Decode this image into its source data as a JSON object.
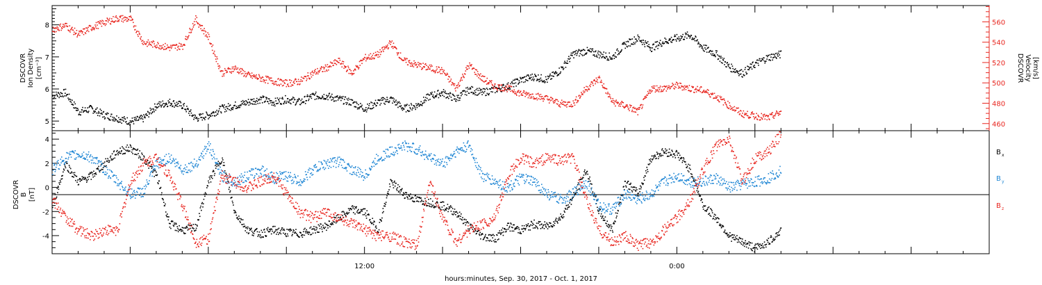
{
  "xlabel": "hours:minutes, Sep. 30, 2017 - Oct.  1, 2017",
  "x_ticks": [
    {
      "label": "12:00",
      "hours": 12
    },
    {
      "label": "0:00",
      "hours": 24
    }
  ],
  "chart_data": [
    {
      "type": "scatter",
      "panel": "top",
      "x_unit": "hours since Sep. 30, 2017 00:00",
      "xlim": [
        0,
        36
      ],
      "ylabel_left": [
        "DSCOVR",
        "Ion Density",
        "[cm⁻³]"
      ],
      "ylabel_right": [
        "DSCOVR",
        "Velocity",
        "[km/s]"
      ],
      "ylim_left": [
        4.7,
        8.6
      ],
      "yticks_left": [
        5,
        6,
        7,
        8
      ],
      "ylim_right": [
        453,
        576
      ],
      "yticks_right": [
        460,
        480,
        500,
        520,
        540,
        560
      ],
      "series": [
        {
          "axis": "left",
          "color": "#000000",
          "x": [
            0,
            0.5,
            1,
            1.5,
            2,
            2.5,
            3,
            3.5,
            4,
            4.5,
            5,
            5.5,
            6,
            6.5,
            7,
            7.5,
            8,
            8.5,
            9,
            9.5,
            10,
            10.5,
            11,
            11.5,
            12,
            12.5,
            13,
            13.5,
            14,
            14.5,
            15,
            15.5,
            16,
            16.5,
            17,
            17.5,
            18,
            18.5,
            19,
            19.5,
            20,
            20.5,
            21,
            21.5,
            22,
            22.5,
            23,
            23.5,
            24,
            24.5,
            25,
            25.5,
            26,
            26.5,
            27,
            27.5,
            28
          ],
          "y": [
            5.8,
            5.9,
            5.3,
            5.4,
            5.2,
            5.1,
            5.0,
            5.1,
            5.5,
            5.6,
            5.5,
            5.1,
            5.2,
            5.4,
            5.5,
            5.6,
            5.7,
            5.6,
            5.7,
            5.6,
            5.8,
            5.8,
            5.7,
            5.6,
            5.4,
            5.6,
            5.7,
            5.4,
            5.5,
            5.8,
            5.9,
            5.7,
            6.0,
            5.9,
            6.0,
            6.1,
            6.3,
            6.4,
            6.3,
            6.6,
            7.1,
            7.2,
            7.1,
            7.0,
            7.4,
            7.6,
            7.3,
            7.5,
            7.6,
            7.7,
            7.3,
            7.1,
            6.7,
            6.5,
            6.8,
            7.0,
            7.1
          ]
        },
        {
          "axis": "right",
          "color": "#e8251e",
          "x": [
            0,
            0.5,
            1,
            1.5,
            2,
            2.5,
            3,
            3.5,
            4,
            4.5,
            5,
            5.5,
            6,
            6.5,
            7,
            7.5,
            8,
            8.5,
            9,
            9.5,
            10,
            10.5,
            11,
            11.5,
            12,
            12.5,
            13,
            13.5,
            14,
            14.5,
            15,
            15.5,
            16,
            16.5,
            17,
            17.5,
            18,
            18.5,
            19,
            19.5,
            20,
            20.5,
            21,
            21.5,
            22,
            22.5,
            23,
            23.5,
            24,
            24.5,
            25,
            25.5,
            26,
            26.5,
            27,
            27.5,
            28
          ],
          "y": [
            553,
            557,
            548,
            555,
            560,
            564,
            563,
            540,
            538,
            535,
            537,
            563,
            545,
            510,
            515,
            508,
            505,
            502,
            500,
            502,
            510,
            515,
            522,
            510,
            525,
            528,
            540,
            522,
            518,
            515,
            512,
            495,
            518,
            505,
            497,
            495,
            490,
            488,
            485,
            480,
            480,
            495,
            505,
            482,
            478,
            472,
            495,
            495,
            498,
            495,
            493,
            487,
            478,
            470,
            468,
            466,
            472
          ]
        }
      ]
    },
    {
      "type": "scatter",
      "panel": "bottom",
      "x_unit": "hours since Sep. 30, 2017 00:00",
      "xlim": [
        0,
        36
      ],
      "ylabel_left": [
        "DSCOVR",
        "B",
        "[nT]"
      ],
      "ylim": [
        -5.5,
        4.7
      ],
      "yticks": [
        -4,
        -2,
        0,
        2,
        4
      ],
      "series": [
        {
          "name": "Bx",
          "color": "#000000",
          "x": [
            0,
            0.5,
            1,
            1.5,
            2,
            2.5,
            3,
            3.5,
            4,
            4.5,
            5,
            5.5,
            6,
            6.5,
            7,
            7.5,
            8,
            8.5,
            9,
            9.5,
            10,
            10.5,
            11,
            11.5,
            12,
            12.5,
            13,
            13.5,
            14,
            14.5,
            15,
            15.5,
            16,
            16.5,
            17,
            17.5,
            18,
            18.5,
            19,
            19.5,
            20,
            20.5,
            21,
            21.5,
            22,
            22.5,
            23,
            23.5,
            24,
            24.5,
            25,
            25.5,
            26,
            26.5,
            27,
            27.5,
            28
          ],
          "y": [
            -1.5,
            2.0,
            0.5,
            1.0,
            2.0,
            3.0,
            3.3,
            2.5,
            1.0,
            -3.0,
            -3.5,
            -3.3,
            0.5,
            2.5,
            -2.0,
            -3.5,
            -3.8,
            -3.5,
            -3.7,
            -3.8,
            -3.5,
            -3.2,
            -2.5,
            -1.8,
            -2.0,
            -3.5,
            0.5,
            -0.5,
            -1.0,
            -1.2,
            -1.5,
            -2.0,
            -3.2,
            -4.0,
            -4.2,
            -3.2,
            -3.5,
            -3.0,
            -3.2,
            -2.5,
            -0.8,
            1.5,
            -2.0,
            -3.5,
            0.5,
            -0.5,
            2.5,
            3.0,
            2.8,
            1.5,
            -1.5,
            -2.5,
            -4.0,
            -4.5,
            -5.0,
            -4.5,
            -3.5
          ]
        },
        {
          "name": "By",
          "color": "#1f86d4",
          "x": [
            0,
            0.5,
            1,
            1.5,
            2,
            2.5,
            3,
            3.5,
            4,
            4.5,
            5,
            5.5,
            6,
            6.5,
            7,
            7.5,
            8,
            8.5,
            9,
            9.5,
            10,
            10.5,
            11,
            11.5,
            12,
            12.5,
            13,
            13.5,
            14,
            14.5,
            15,
            15.5,
            16,
            16.5,
            17,
            17.5,
            18,
            18.5,
            19,
            19.5,
            20,
            20.5,
            21,
            21.5,
            22,
            22.5,
            23,
            23.5,
            24,
            24.5,
            25,
            25.5,
            26,
            26.5,
            27,
            27.5,
            28
          ],
          "y": [
            1.5,
            2.5,
            2.8,
            2.5,
            1.5,
            0.5,
            -0.5,
            -0.3,
            2.0,
            2.5,
            1.5,
            2.0,
            3.5,
            1.0,
            0.5,
            1.0,
            1.5,
            0.8,
            1.0,
            0.5,
            1.5,
            2.0,
            2.2,
            1.5,
            1.0,
            2.5,
            3.0,
            3.5,
            3.2,
            2.5,
            2.0,
            3.0,
            3.5,
            1.0,
            0.5,
            0.0,
            0.8,
            0.5,
            -0.5,
            -1.0,
            -0.5,
            0.5,
            -1.5,
            -1.8,
            -0.5,
            -1.0,
            -0.5,
            0.5,
            1.0,
            0.5,
            0.5,
            0.8,
            0.0,
            0.3,
            0.5,
            0.8,
            1.5
          ]
        },
        {
          "name": "Bz",
          "color": "#e8251e",
          "x": [
            0,
            0.5,
            1,
            1.5,
            2,
            2.5,
            3,
            3.5,
            4,
            4.5,
            5,
            5.5,
            6,
            6.5,
            7,
            7.5,
            8,
            8.5,
            9,
            9.5,
            10,
            10.5,
            11,
            11.5,
            12,
            12.5,
            13,
            13.5,
            14,
            14.5,
            15,
            15.5,
            16,
            16.5,
            17,
            17.5,
            18,
            18.5,
            19,
            19.5,
            20,
            20.5,
            21,
            21.5,
            22,
            22.5,
            23,
            23.5,
            24,
            24.5,
            25,
            25.5,
            26,
            26.5,
            27,
            27.5,
            28
          ],
          "y": [
            -1.0,
            -2.5,
            -3.5,
            -4.0,
            -3.5,
            -3.5,
            0.5,
            2.0,
            2.5,
            1.0,
            -1.5,
            -4.5,
            -4.2,
            1.0,
            0.5,
            0.0,
            0.5,
            1.0,
            -0.5,
            -2.0,
            -2.5,
            -2.0,
            -2.5,
            -3.0,
            -3.5,
            -4.0,
            -4.0,
            -4.5,
            -4.8,
            0.5,
            -2.5,
            -4.5,
            -3.5,
            -3.0,
            -2.5,
            1.0,
            2.5,
            2.0,
            2.5,
            2.3,
            2.5,
            -1.0,
            -3.5,
            -4.5,
            -4.0,
            -4.8,
            -4.5,
            -3.5,
            -2.5,
            -1.0,
            1.5,
            3.5,
            4.0,
            0.5,
            2.5,
            3.0,
            4.5
          ]
        }
      ]
    }
  ]
}
